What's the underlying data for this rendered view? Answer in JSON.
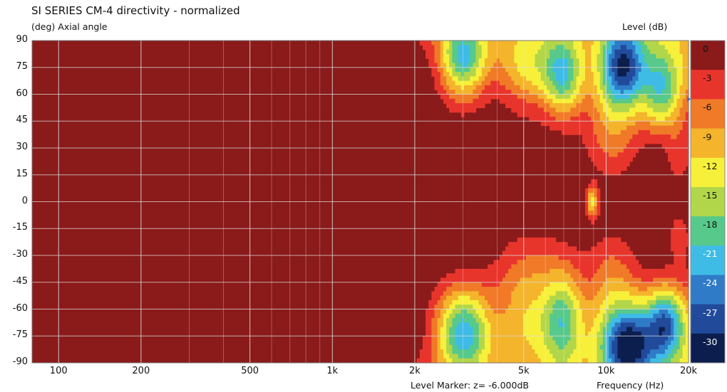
{
  "title": "SI SERIES CM-4 directivity - normalized",
  "y_axis_label": "(deg)  Axial angle",
  "colorbar_unit": "Level  (dB)",
  "level_marker": "Level Marker:  z= -6.000dB",
  "x_axis_label": "Frequency  (Hz)",
  "chart_data": {
    "type": "heatmap",
    "title": "SI SERIES CM-4 directivity - normalized",
    "xlabel": "Frequency  (Hz)",
    "ylabel": "(deg)  Axial angle",
    "xscale": "log",
    "xlim": [
      80,
      20000
    ],
    "ylim": [
      -90,
      90
    ],
    "x_ticks": [
      {
        "v": 100,
        "label": "100"
      },
      {
        "v": 200,
        "label": "200"
      },
      {
        "v": 500,
        "label": "500"
      },
      {
        "v": 1000,
        "label": "1k"
      },
      {
        "v": 2000,
        "label": "2k"
      },
      {
        "v": 5000,
        "label": "5k"
      },
      {
        "v": 10000,
        "label": "10k"
      },
      {
        "v": 20000,
        "label": "20k"
      }
    ],
    "y_ticks": [
      90,
      75,
      60,
      45,
      30,
      15,
      0,
      -15,
      -30,
      -45,
      -60,
      -75,
      -90
    ],
    "colorbar": {
      "label": "Level  (dB)",
      "levels": [
        0,
        -3,
        -6,
        -9,
        -12,
        -15,
        -18,
        -21,
        -24,
        -27,
        -30
      ],
      "colors": [
        "#8b1a1a",
        "#e8352c",
        "#f07a28",
        "#f4b42c",
        "#f7f03a",
        "#b2d64a",
        "#57c98b",
        "#3fbce6",
        "#2f7bc7",
        "#214a9a",
        "#0c1e4e"
      ]
    },
    "contour_marker_db": -6.0,
    "features": [
      {
        "x": 3000,
        "y": 80,
        "min_db": -24
      },
      {
        "x": 11500,
        "y": 75,
        "min_db": -24
      },
      {
        "x": 8900,
        "y": 0,
        "min_db": -12
      },
      {
        "x": 3000,
        "y": -72,
        "min_db": -27
      },
      {
        "x": 12000,
        "y": -80,
        "min_db": -30
      },
      {
        "x": 16500,
        "y": -68,
        "min_db": -24
      }
    ]
  }
}
